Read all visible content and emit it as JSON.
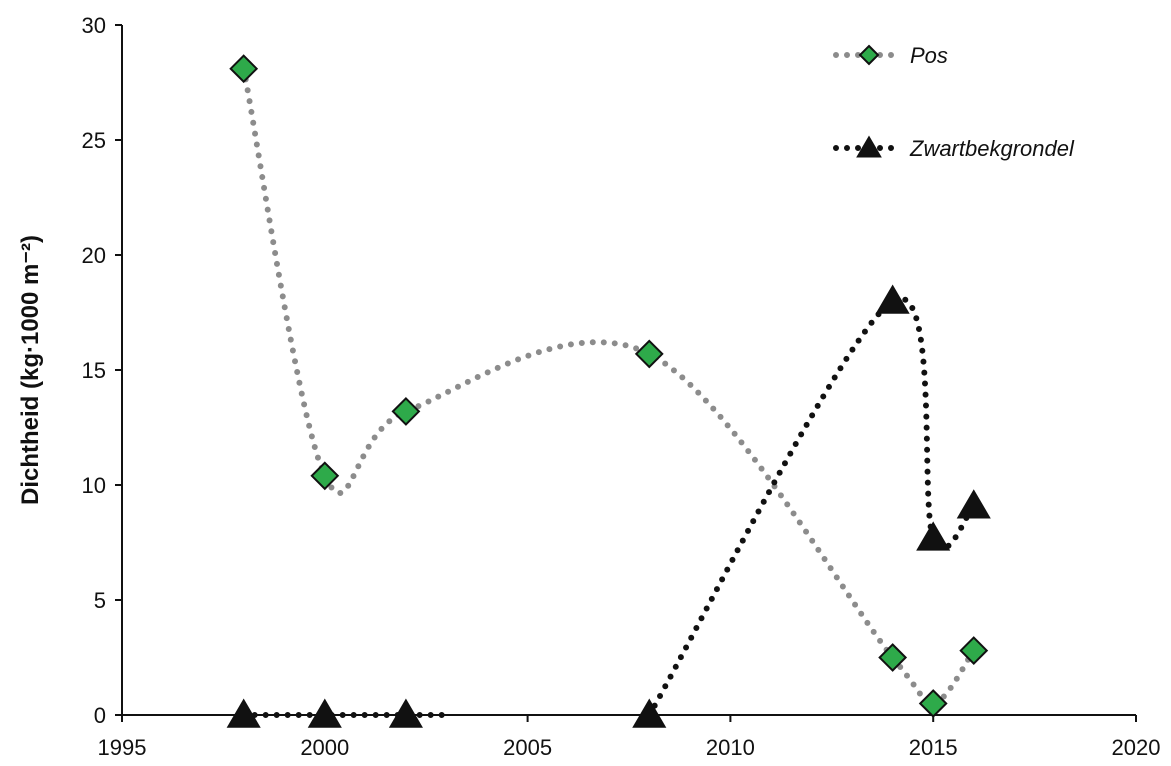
{
  "chart_data": {
    "type": "scatter",
    "title": "",
    "xlabel": "",
    "ylabel": "Dichtheid (kg·1000 m⁻²)",
    "xlim": [
      1995,
      2020
    ],
    "ylim": [
      0,
      30
    ],
    "xticks": [
      "1995",
      "2000",
      "2005",
      "2010",
      "2015",
      "2020"
    ],
    "yticks": [
      "0",
      "5",
      "10",
      "15",
      "20",
      "25",
      "30"
    ],
    "legend_position": "top-right",
    "grid": false,
    "series": [
      {
        "name": "Pos",
        "marker": "diamond",
        "marker_color": "#2eaa4a",
        "line_color": "#8c8c8c",
        "line_style": "dotted smoothed",
        "points": [
          {
            "x": 1998,
            "y": 28.1
          },
          {
            "x": 2000,
            "y": 10.4
          },
          {
            "x": 2002,
            "y": 13.2
          },
          {
            "x": 2008,
            "y": 15.7
          },
          {
            "x": 2014,
            "y": 2.5
          },
          {
            "x": 2015,
            "y": 0.5
          },
          {
            "x": 2016,
            "y": 2.8
          }
        ]
      },
      {
        "name": "Zwartbekgrondel",
        "marker": "triangle",
        "marker_color": "#111111",
        "line_color": "#111111",
        "line_style": "dotted smoothed",
        "points": [
          {
            "x": 1998,
            "y": 0
          },
          {
            "x": 2000,
            "y": 0
          },
          {
            "x": 2002,
            "y": 0
          },
          {
            "x": 2008,
            "y": 0
          },
          {
            "x": 2014,
            "y": 18
          },
          {
            "x": 2015,
            "y": 7.7
          },
          {
            "x": 2016,
            "y": 9.1
          }
        ]
      }
    ]
  }
}
